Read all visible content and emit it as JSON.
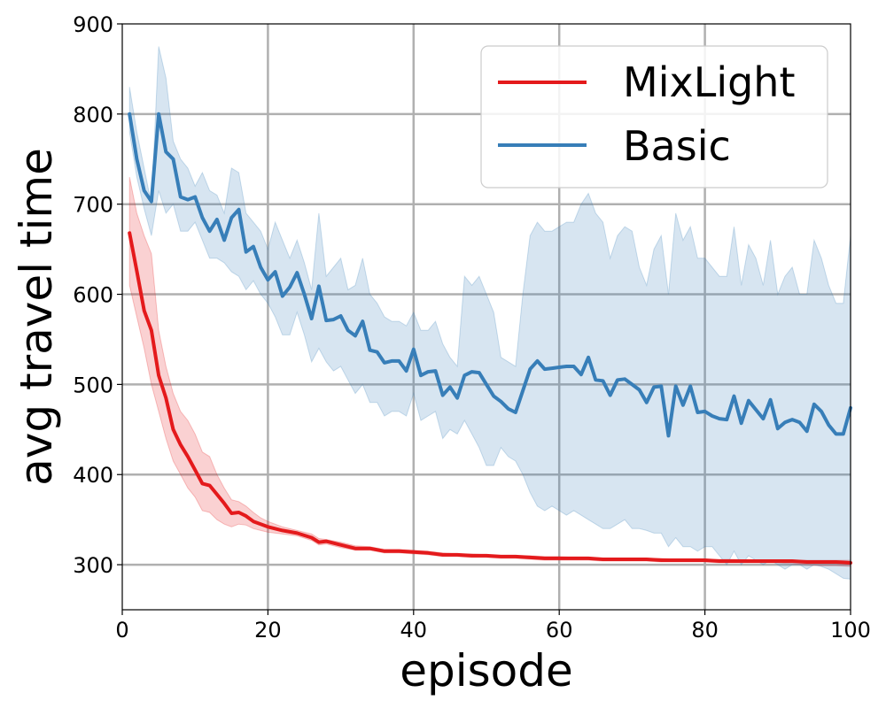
{
  "chart_data": {
    "type": "line",
    "title": "",
    "xlabel": "episode",
    "ylabel": "avg travel time",
    "xlim": [
      0,
      100
    ],
    "ylim": [
      250,
      900
    ],
    "x_ticks": [
      "0",
      "20",
      "40",
      "60",
      "80",
      "100"
    ],
    "y_ticks": [
      "300",
      "400",
      "500",
      "600",
      "700",
      "800",
      "900"
    ],
    "grid": true,
    "legend_position": "top-right",
    "series": [
      {
        "name": "MixLight",
        "color": "#e41a1c",
        "band_color": "#e41a1c",
        "x": [
          1,
          2,
          3,
          4,
          5,
          6,
          7,
          8,
          9,
          10,
          11,
          12,
          13,
          14,
          15,
          16,
          17,
          18,
          19,
          20,
          22,
          24,
          26,
          27,
          28,
          30,
          32,
          34,
          36,
          38,
          40,
          42,
          44,
          46,
          48,
          50,
          52,
          54,
          56,
          58,
          60,
          62,
          64,
          66,
          68,
          70,
          72,
          74,
          76,
          78,
          80,
          82,
          84,
          86,
          88,
          90,
          92,
          94,
          96,
          98,
          100
        ],
        "values": [
          668,
          626,
          582,
          560,
          510,
          485,
          450,
          433,
          420,
          405,
          390,
          388,
          378,
          368,
          357,
          358,
          354,
          348,
          345,
          342,
          338,
          335,
          330,
          325,
          326,
          322,
          318,
          318,
          315,
          315,
          314,
          313,
          311,
          311,
          310,
          310,
          309,
          309,
          308,
          307,
          307,
          307,
          307,
          306,
          306,
          306,
          306,
          305,
          305,
          305,
          305,
          304,
          304,
          304,
          304,
          304,
          304,
          303,
          303,
          303,
          302
        ],
        "upper": [
          730,
          690,
          665,
          645,
          560,
          520,
          490,
          470,
          460,
          445,
          425,
          420,
          400,
          385,
          372,
          370,
          365,
          358,
          352,
          348,
          342,
          338,
          334,
          329,
          328,
          325,
          321,
          320,
          317,
          317,
          316,
          315,
          313,
          312,
          312,
          311,
          310,
          310,
          310,
          309,
          309,
          308,
          308,
          307,
          307,
          307,
          307,
          307,
          306,
          306,
          306,
          306,
          306,
          305,
          305,
          305,
          305,
          305,
          305,
          305,
          305
        ],
        "lower": [
          610,
          575,
          540,
          500,
          470,
          440,
          415,
          400,
          385,
          375,
          360,
          358,
          350,
          345,
          342,
          345,
          344,
          340,
          338,
          336,
          334,
          332,
          327,
          322,
          323,
          319,
          316,
          316,
          313,
          313,
          312,
          311,
          309,
          309,
          308,
          308,
          307,
          307,
          306,
          305,
          305,
          305,
          305,
          304,
          304,
          304,
          304,
          303,
          303,
          303,
          303,
          302,
          302,
          302,
          302,
          302,
          301,
          300,
          299,
          299,
          298
        ]
      },
      {
        "name": "Basic",
        "color": "#377eb8",
        "band_color": "#377eb8",
        "x": [
          1,
          2,
          3,
          4,
          5,
          6,
          7,
          8,
          9,
          10,
          11,
          12,
          13,
          14,
          15,
          16,
          17,
          18,
          19,
          20,
          21,
          22,
          23,
          24,
          25,
          26,
          27,
          28,
          29,
          30,
          31,
          32,
          33,
          34,
          35,
          36,
          37,
          38,
          39,
          40,
          41,
          42,
          43,
          44,
          45,
          46,
          47,
          48,
          49,
          50,
          51,
          52,
          53,
          54,
          55,
          56,
          57,
          58,
          59,
          60,
          61,
          62,
          63,
          64,
          65,
          66,
          67,
          68,
          69,
          70,
          71,
          72,
          73,
          74,
          75,
          76,
          77,
          78,
          79,
          80,
          81,
          82,
          83,
          84,
          85,
          86,
          87,
          88,
          89,
          90,
          91,
          92,
          93,
          94,
          95,
          96,
          97,
          98,
          99,
          100
        ],
        "values": [
          800,
          750,
          715,
          703,
          800,
          758,
          750,
          708,
          705,
          708,
          685,
          670,
          683,
          660,
          685,
          694,
          647,
          653,
          630,
          616,
          625,
          598,
          608,
          624,
          600,
          573,
          609,
          571,
          572,
          576,
          560,
          554,
          570,
          538,
          536,
          524,
          526,
          526,
          515,
          539,
          510,
          514,
          515,
          488,
          497,
          485,
          510,
          514,
          513,
          500,
          487,
          481,
          473,
          469,
          493,
          517,
          526,
          517,
          518,
          519,
          520,
          520,
          511,
          530,
          505,
          504,
          488,
          505,
          506,
          500,
          494,
          480,
          497,
          498,
          443,
          498,
          477,
          498,
          469,
          470,
          465,
          462,
          461,
          487,
          457,
          482,
          472,
          462,
          483,
          451,
          458,
          461,
          458,
          448,
          478,
          470,
          455,
          445,
          445,
          474
        ],
        "upper": [
          830,
          780,
          740,
          700,
          875,
          840,
          770,
          750,
          740,
          720,
          735,
          715,
          710,
          690,
          740,
          735,
          690,
          680,
          670,
          650,
          680,
          660,
          640,
          660,
          635,
          605,
          690,
          620,
          630,
          640,
          605,
          610,
          640,
          600,
          590,
          575,
          570,
          570,
          565,
          580,
          560,
          560,
          570,
          545,
          530,
          520,
          620,
          610,
          620,
          600,
          580,
          530,
          525,
          520,
          600,
          665,
          680,
          670,
          670,
          675,
          680,
          680,
          700,
          712,
          690,
          680,
          640,
          665,
          675,
          670,
          630,
          610,
          650,
          665,
          600,
          690,
          660,
          675,
          640,
          640,
          630,
          620,
          620,
          675,
          610,
          655,
          640,
          610,
          660,
          600,
          620,
          630,
          600,
          600,
          660,
          640,
          610,
          590,
          590,
          665
        ],
        "lower": [
          780,
          730,
          695,
          665,
          715,
          690,
          700,
          670,
          670,
          680,
          660,
          640,
          640,
          635,
          625,
          620,
          605,
          615,
          600,
          590,
          575,
          555,
          555,
          580,
          555,
          525,
          540,
          525,
          515,
          520,
          505,
          490,
          500,
          480,
          480,
          465,
          470,
          470,
          465,
          490,
          460,
          465,
          470,
          440,
          450,
          445,
          460,
          445,
          430,
          410,
          410,
          430,
          420,
          415,
          400,
          380,
          365,
          360,
          365,
          360,
          355,
          360,
          355,
          350,
          345,
          340,
          340,
          345,
          350,
          340,
          340,
          338,
          335,
          335,
          320,
          330,
          320,
          320,
          315,
          320,
          320,
          310,
          300,
          315,
          300,
          310,
          305,
          300,
          305,
          300,
          295,
          300,
          300,
          295,
          300,
          298,
          295,
          290,
          285,
          284
        ]
      }
    ]
  }
}
